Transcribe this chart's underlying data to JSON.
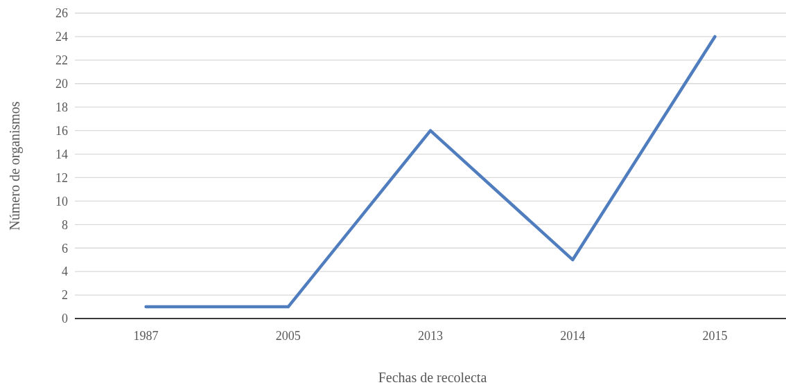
{
  "chart_data": {
    "type": "line",
    "xlabel": "Fechas de recolecta",
    "ylabel": "Número de organismos",
    "categories": [
      "1987",
      "2005",
      "2013",
      "2014",
      "2015"
    ],
    "series": [
      {
        "color": "#4f7dbd",
        "values": [
          1,
          1,
          16,
          5,
          24
        ]
      }
    ],
    "ylim": [
      0,
      26
    ],
    "yticks": [
      0,
      2,
      4,
      6,
      8,
      10,
      12,
      14,
      16,
      18,
      20,
      22,
      24,
      26
    ],
    "grid": "y",
    "marker": "none",
    "line_style": "solid"
  }
}
